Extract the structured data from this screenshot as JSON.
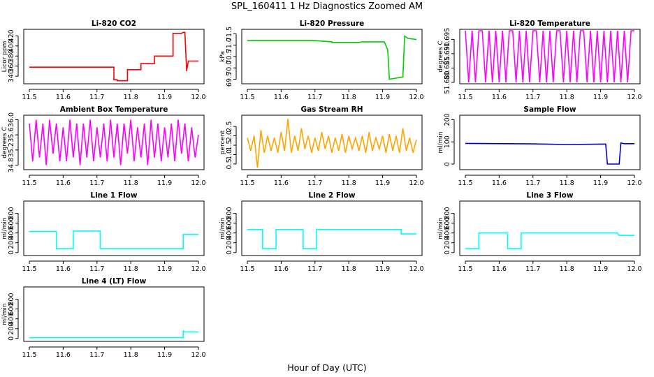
{
  "title": "SPL_160411 1 Hz Diagnostics Zoomed AM",
  "xlabel": "Hour of Day (UTC)",
  "chart_data": [
    {
      "type": "line",
      "title": "Li-820 CO2",
      "ylabel": "Licor ppm",
      "color": "#ff0000",
      "xlim": [
        11.5,
        12.0
      ],
      "ylim": [
        325,
        433
      ],
      "xticks": [
        11.5,
        11.6,
        11.7,
        11.8,
        11.9,
        12.0
      ],
      "yticks": [
        340,
        360,
        380,
        400,
        420
      ],
      "x": [
        11.5,
        11.75,
        11.75,
        11.76,
        11.76,
        11.79,
        11.79,
        11.83,
        11.83,
        11.87,
        11.87,
        11.925,
        11.925,
        11.95,
        11.955,
        11.96,
        11.965,
        11.97,
        12.0
      ],
      "y": [
        358,
        358,
        333,
        333,
        331,
        331,
        353,
        353,
        365,
        365,
        380,
        380,
        425,
        425,
        427,
        427,
        350,
        370,
        370
      ]
    },
    {
      "type": "line",
      "title": "Li-820 Pressure",
      "ylabel": "kPa",
      "color": "#00cc00",
      "xlim": [
        11.5,
        12.0
      ],
      "ylim": [
        69.3,
        71.7
      ],
      "xticks": [
        11.5,
        11.6,
        11.7,
        11.8,
        11.9,
        12.0
      ],
      "yticks": [
        69.5,
        70.0,
        70.5,
        71.0,
        71.5
      ],
      "x": [
        11.5,
        11.7,
        11.75,
        11.75,
        11.83,
        11.84,
        11.905,
        11.915,
        11.92,
        11.96,
        11.965,
        11.975,
        12.0
      ],
      "y": [
        71.2,
        71.2,
        71.15,
        71.12,
        71.12,
        71.15,
        71.15,
        70.8,
        69.5,
        69.6,
        71.4,
        71.3,
        71.25
      ]
    },
    {
      "type": "line",
      "title": "Li-820 Temperature",
      "ylabel": "degrees C",
      "color": "#ff00ff",
      "xlim": [
        11.5,
        12.0
      ],
      "ylim": [
        51.6795,
        51.6985
      ],
      "xticks": [
        11.5,
        11.6,
        11.7,
        11.8,
        11.9,
        12.0
      ],
      "yticks": [
        51.68,
        51.685,
        51.69,
        51.695
      ],
      "x": [
        11.5,
        11.51,
        11.52,
        11.53,
        11.54,
        11.55,
        11.56,
        11.57,
        11.58,
        11.59,
        11.6,
        11.61,
        11.62,
        11.63,
        11.64,
        11.65,
        11.66,
        11.67,
        11.68,
        11.69,
        11.7,
        11.71,
        11.72,
        11.73,
        11.74,
        11.75,
        11.76,
        11.77,
        11.78,
        11.79,
        11.8,
        11.81,
        11.82,
        11.83,
        11.84,
        11.85,
        11.86,
        11.87,
        11.88,
        11.89,
        11.9,
        11.91,
        11.92,
        11.93,
        11.94,
        11.95,
        11.96,
        11.97,
        11.98,
        11.99,
        12.0
      ],
      "y": [
        51.698,
        51.68,
        51.698,
        51.68,
        51.698,
        51.698,
        51.68,
        51.698,
        51.68,
        51.698,
        51.68,
        51.698,
        51.68,
        51.698,
        51.698,
        51.68,
        51.698,
        51.68,
        51.698,
        51.68,
        51.698,
        51.698,
        51.68,
        51.698,
        51.68,
        51.698,
        51.68,
        51.698,
        51.698,
        51.68,
        51.698,
        51.68,
        51.698,
        51.68,
        51.698,
        51.698,
        51.68,
        51.698,
        51.68,
        51.698,
        51.68,
        51.698,
        51.68,
        51.698,
        51.68,
        51.698,
        51.68,
        51.698,
        51.68,
        51.698,
        51.698
      ]
    },
    {
      "type": "line",
      "title": "Ambient Box Temperature",
      "ylabel": "degrees C",
      "color": "#ff00ff",
      "xlim": [
        11.5,
        12.0
      ],
      "ylim": [
        34.68,
        36.12
      ],
      "xticks": [
        11.5,
        11.6,
        11.7,
        11.8,
        11.9,
        12.0
      ],
      "yticks": [
        34.8,
        35.2,
        35.6,
        36.0
      ],
      "x": [
        11.5,
        11.51,
        11.52,
        11.53,
        11.54,
        11.55,
        11.56,
        11.57,
        11.58,
        11.59,
        11.6,
        11.61,
        11.62,
        11.63,
        11.64,
        11.65,
        11.66,
        11.67,
        11.68,
        11.69,
        11.7,
        11.71,
        11.72,
        11.73,
        11.74,
        11.75,
        11.76,
        11.77,
        11.78,
        11.79,
        11.8,
        11.81,
        11.82,
        11.83,
        11.84,
        11.85,
        11.86,
        11.87,
        11.88,
        11.89,
        11.9,
        11.91,
        11.92,
        11.93,
        11.94,
        11.95,
        11.96,
        11.97,
        11.98,
        11.99,
        12.0
      ],
      "y": [
        35.9,
        34.9,
        36.0,
        35.0,
        35.9,
        34.8,
        36.0,
        35.1,
        35.9,
        34.9,
        35.8,
        34.9,
        36.0,
        35.0,
        35.9,
        34.8,
        35.9,
        35.0,
        36.0,
        34.9,
        35.8,
        35.0,
        35.9,
        34.9,
        36.0,
        35.0,
        35.9,
        34.8,
        35.9,
        35.1,
        36.0,
        34.9,
        35.8,
        35.0,
        35.9,
        34.8,
        36.0,
        35.0,
        35.9,
        34.9,
        35.8,
        35.0,
        35.9,
        34.9,
        36.0,
        35.1,
        35.9,
        34.9,
        35.8,
        35.0,
        35.6
      ]
    },
    {
      "type": "line",
      "title": "Gas Stream RH",
      "ylabel": "percent",
      "color": "#ffa500",
      "xlim": [
        11.5,
        12.0
      ],
      "ylim": [
        0.2,
        3.1
      ],
      "xticks": [
        11.5,
        11.6,
        11.7,
        11.8,
        11.9,
        12.0
      ],
      "yticks": [
        0.5,
        1.0,
        1.5,
        2.0,
        2.5
      ],
      "x": [
        11.5,
        11.51,
        11.52,
        11.53,
        11.54,
        11.55,
        11.56,
        11.57,
        11.58,
        11.59,
        11.6,
        11.61,
        11.62,
        11.63,
        11.64,
        11.65,
        11.66,
        11.67,
        11.68,
        11.69,
        11.7,
        11.71,
        11.72,
        11.73,
        11.74,
        11.75,
        11.76,
        11.77,
        11.78,
        11.79,
        11.8,
        11.81,
        11.82,
        11.83,
        11.84,
        11.85,
        11.86,
        11.87,
        11.88,
        11.89,
        11.9,
        11.91,
        11.92,
        11.93,
        11.94,
        11.95,
        11.96,
        11.97,
        11.98,
        11.99,
        12.0
      ],
      "y": [
        1.9,
        1.2,
        2.0,
        0.3,
        2.3,
        1.1,
        2.0,
        1.2,
        1.9,
        1.1,
        2.2,
        1.2,
        2.9,
        1.1,
        2.0,
        1.2,
        2.4,
        1.3,
        2.0,
        1.1,
        1.9,
        1.2,
        2.2,
        1.3,
        2.0,
        1.1,
        1.9,
        1.2,
        2.1,
        1.1,
        2.0,
        1.3,
        1.9,
        1.2,
        2.0,
        1.1,
        2.2,
        1.2,
        1.9,
        1.3,
        2.0,
        1.1,
        2.1,
        1.2,
        2.0,
        1.1,
        2.4,
        1.2,
        1.9,
        1.1,
        1.8
      ]
    },
    {
      "type": "line",
      "title": "Sample Flow",
      "ylabel": "ml/min",
      "color": "#0000cc",
      "xlim": [
        11.5,
        12.0
      ],
      "ylim": [
        -25,
        220
      ],
      "xticks": [
        11.5,
        11.6,
        11.7,
        11.8,
        11.9,
        12.0
      ],
      "yticks": [
        0,
        100,
        200
      ],
      "x": [
        11.5,
        11.7,
        11.8,
        11.9,
        11.915,
        11.92,
        11.955,
        11.96,
        11.97,
        12.0
      ],
      "y": [
        93,
        91,
        88,
        90,
        90,
        0,
        0,
        95,
        92,
        92
      ]
    },
    {
      "type": "line",
      "title": "Line 1 Flow",
      "ylabel": "ml/min",
      "color": "#00ffff",
      "xlim": [
        11.5,
        12.0
      ],
      "ylim": [
        -60,
        1050
      ],
      "xticks": [
        11.5,
        11.6,
        11.7,
        11.8,
        11.9,
        12.0
      ],
      "yticks": [
        0,
        200,
        400,
        600,
        800
      ],
      "x": [
        11.5,
        11.58,
        11.58,
        11.63,
        11.63,
        11.71,
        11.71,
        11.955,
        11.955,
        12.0
      ],
      "y": [
        430,
        430,
        80,
        80,
        440,
        440,
        80,
        80,
        370,
        370
      ]
    },
    {
      "type": "line",
      "title": "Line 2 Flow",
      "ylabel": "ml/min",
      "color": "#00ffff",
      "xlim": [
        11.5,
        12.0
      ],
      "ylim": [
        -60,
        1050
      ],
      "xticks": [
        11.5,
        11.6,
        11.7,
        11.8,
        11.9,
        12.0
      ],
      "yticks": [
        0,
        200,
        400,
        600,
        800
      ],
      "x": [
        11.5,
        11.545,
        11.545,
        11.585,
        11.585,
        11.665,
        11.665,
        11.705,
        11.705,
        11.955,
        11.955,
        12.0
      ],
      "y": [
        470,
        470,
        80,
        80,
        470,
        470,
        80,
        80,
        470,
        470,
        380,
        380
      ]
    },
    {
      "type": "line",
      "title": "Line 3 Flow",
      "ylabel": "ml/min",
      "color": "#00ffff",
      "xlim": [
        11.5,
        12.0
      ],
      "ylim": [
        -60,
        1050
      ],
      "xticks": [
        11.5,
        11.6,
        11.7,
        11.8,
        11.9,
        12.0
      ],
      "yticks": [
        0,
        200,
        400,
        600,
        800
      ],
      "x": [
        11.5,
        11.54,
        11.54,
        11.625,
        11.625,
        11.665,
        11.665,
        11.95,
        11.955,
        12.0
      ],
      "y": [
        80,
        80,
        400,
        400,
        80,
        80,
        400,
        400,
        350,
        350
      ]
    },
    {
      "type": "line",
      "title": "Line 4 (LT) Flow",
      "ylabel": "ml/min",
      "color": "#00ffff",
      "xlim": [
        11.5,
        12.0
      ],
      "ylim": [
        -60,
        1050
      ],
      "xticks": [
        11.5,
        11.6,
        11.7,
        11.8,
        11.9,
        12.0
      ],
      "yticks": [
        0,
        200,
        400,
        600,
        800
      ],
      "x": [
        11.5,
        11.955,
        11.955,
        11.96,
        12.0
      ],
      "y": [
        15,
        15,
        150,
        130,
        130
      ]
    }
  ]
}
